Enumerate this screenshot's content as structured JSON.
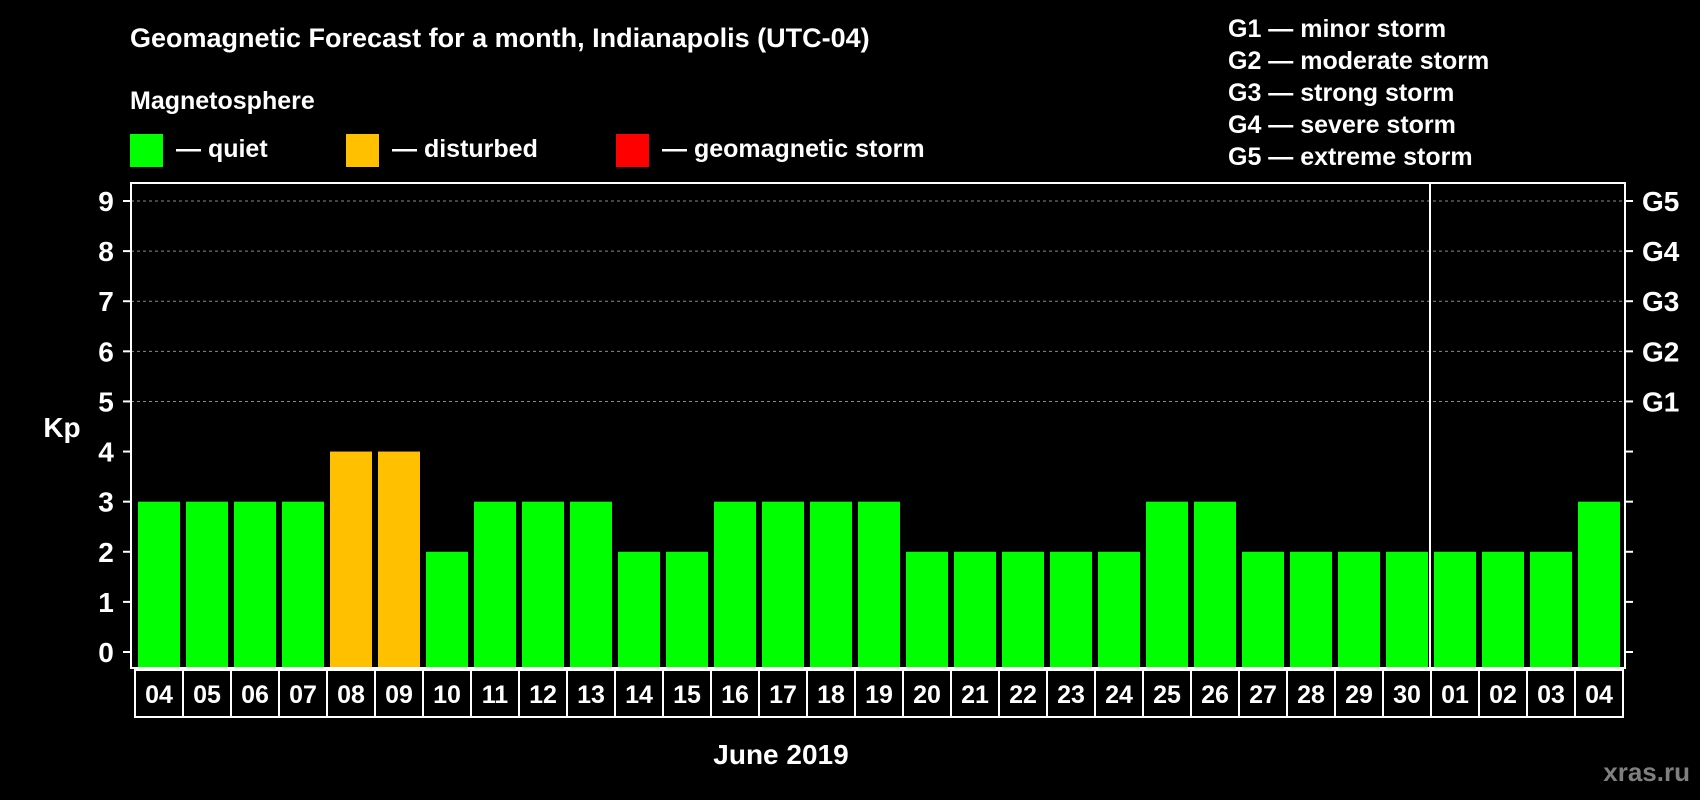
{
  "chart_data": {
    "type": "bar",
    "title": "Geomagnetic Forecast for a month, Indianapolis (UTC-04)",
    "subtitle": "Magnetosphere",
    "ylabel": "Kp",
    "xlabel": "June 2019",
    "ylim": [
      0,
      9
    ],
    "y_ticks": [
      "0",
      "1",
      "2",
      "3",
      "4",
      "5",
      "6",
      "7",
      "8",
      "9"
    ],
    "right_ticks": [
      {
        "kp": 5,
        "label": "G1"
      },
      {
        "kp": 6,
        "label": "G2"
      },
      {
        "kp": 7,
        "label": "G3"
      },
      {
        "kp": 8,
        "label": "G4"
      },
      {
        "kp": 9,
        "label": "G5"
      }
    ],
    "categories": [
      "04",
      "05",
      "06",
      "07",
      "08",
      "09",
      "10",
      "11",
      "12",
      "13",
      "14",
      "15",
      "16",
      "17",
      "18",
      "19",
      "20",
      "21",
      "22",
      "23",
      "24",
      "25",
      "26",
      "27",
      "28",
      "29",
      "30",
      "01",
      "02",
      "03",
      "04"
    ],
    "values": [
      3,
      3,
      3,
      3,
      4,
      4,
      2,
      3,
      3,
      3,
      2,
      2,
      3,
      3,
      3,
      3,
      2,
      2,
      2,
      2,
      2,
      3,
      3,
      2,
      2,
      2,
      2,
      2,
      2,
      2,
      3
    ],
    "status": [
      "quiet",
      "quiet",
      "quiet",
      "quiet",
      "disturbed",
      "disturbed",
      "quiet",
      "quiet",
      "quiet",
      "quiet",
      "quiet",
      "quiet",
      "quiet",
      "quiet",
      "quiet",
      "quiet",
      "quiet",
      "quiet",
      "quiet",
      "quiet",
      "quiet",
      "quiet",
      "quiet",
      "quiet",
      "quiet",
      "quiet",
      "quiet",
      "quiet",
      "quiet",
      "quiet",
      "quiet"
    ],
    "month_break_after_index": 26,
    "legend": [
      {
        "key": "quiet",
        "label": "— quiet",
        "color": "#00ff00"
      },
      {
        "key": "disturbed",
        "label": "— disturbed",
        "color": "#ffc000"
      },
      {
        "key": "storm",
        "label": "— geomagnetic storm",
        "color": "#ff0000"
      }
    ],
    "storm_scale": [
      "G1 — minor storm",
      "G2 — moderate storm",
      "G3 — strong storm",
      "G4 — severe storm",
      "G5 — extreme storm"
    ]
  },
  "watermark": "xras.ru"
}
